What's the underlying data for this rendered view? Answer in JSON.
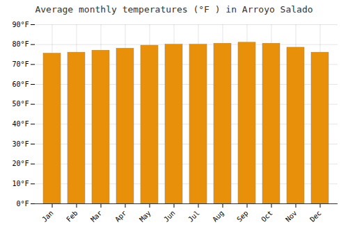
{
  "chart_data": {
    "type": "bar",
    "title": "Average monthly temperatures (°F ) in Arroyo Salado",
    "categories": [
      "Jan",
      "Feb",
      "Mar",
      "Apr",
      "May",
      "Jun",
      "Jul",
      "Aug",
      "Sep",
      "Oct",
      "Nov",
      "Dec"
    ],
    "values": [
      75.5,
      76.0,
      77.0,
      78.0,
      79.5,
      80.0,
      80.0,
      80.5,
      81.0,
      80.5,
      78.5,
      76.0
    ],
    "color": "#E8900A",
    "ylim": [
      0,
      90
    ],
    "yticks": [
      {
        "value": 0,
        "label": "0°F"
      },
      {
        "value": 10,
        "label": "10°F"
      },
      {
        "value": 20,
        "label": "20°F"
      },
      {
        "value": 30,
        "label": "30°F"
      },
      {
        "value": 40,
        "label": "40°F"
      },
      {
        "value": 50,
        "label": "50°F"
      },
      {
        "value": 60,
        "label": "60°F"
      },
      {
        "value": 70,
        "label": "70°F"
      },
      {
        "value": 80,
        "label": "80°F"
      },
      {
        "value": 90,
        "label": "90°F"
      }
    ],
    "grid": true
  }
}
